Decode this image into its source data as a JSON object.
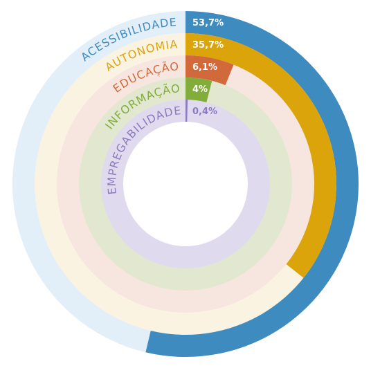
{
  "chart_data": {
    "type": "radial-bar",
    "series": [
      {
        "label": "ACESSIBILIDADE",
        "value": 53.7,
        "value_label": "53,7%",
        "color": "#3e8bbf",
        "track_color": "#e2eef8"
      },
      {
        "label": "AUTONOMIA",
        "value": 35.7,
        "value_label": "35,7%",
        "color": "#dba40b",
        "track_color": "#fbf3e2"
      },
      {
        "label": "EDUCAÇÃO",
        "value": 6.1,
        "value_label": "6,1%",
        "color": "#d2693a",
        "track_color": "#f7e6df"
      },
      {
        "label": "INFORMAÇÃO",
        "value": 4,
        "value_label": "4%",
        "color": "#82ad3a",
        "track_color": "#e2e8cf"
      },
      {
        "label": "EMPREGABILIDADE",
        "value": 0.4,
        "value_label": "0,4%",
        "color": "#8a7bbf",
        "track_color": "#e0daee"
      }
    ],
    "value_range": [
      0,
      100
    ],
    "value_label_color": "#ffffff"
  }
}
